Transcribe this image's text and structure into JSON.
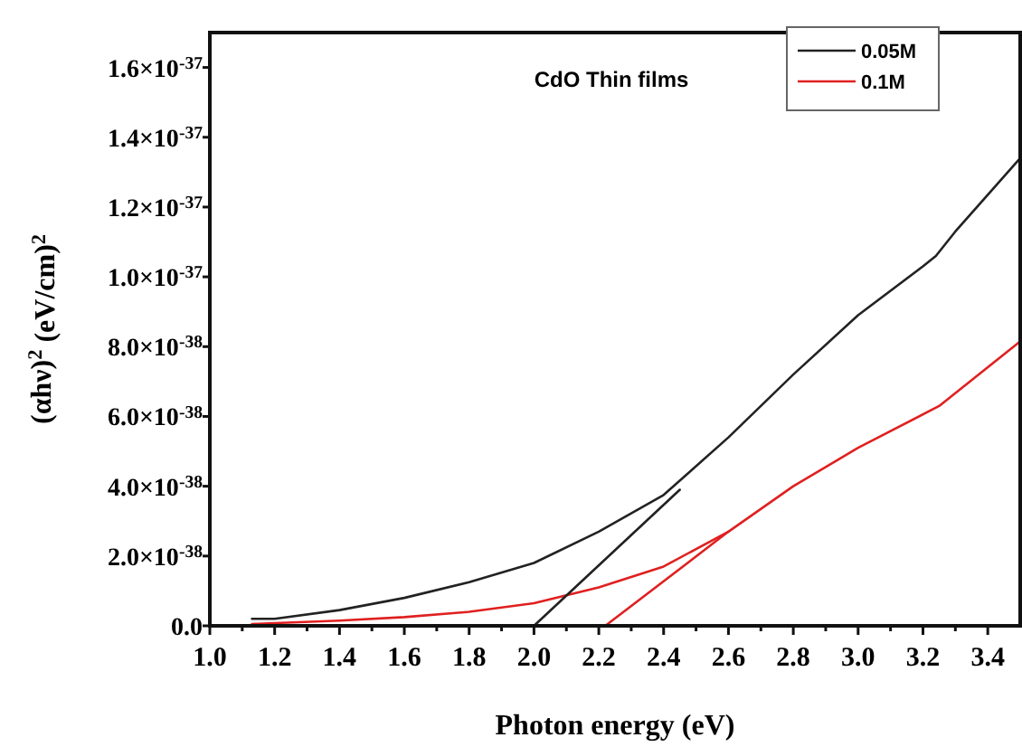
{
  "chart_data": {
    "type": "line",
    "title": "CdO Thin films",
    "xlabel": "Photon energy (eV)",
    "ylabel": "(αhν)$^{2}$ (eV/cm)$^{2}$",
    "xlim": [
      1.0,
      3.5
    ],
    "xticks": [
      {
        "value": 1,
        "label": "1.0"
      },
      {
        "value": 1.1,
        "label": null
      },
      1.2,
      {
        "value": 1.3,
        "label": null
      },
      1.4,
      {
        "value": 1.5,
        "label": null
      },
      1.6,
      {
        "value": 1.7,
        "label": null
      },
      1.8,
      {
        "value": 1.9,
        "label": null
      },
      {
        "value": 2,
        "label": "2.0"
      },
      {
        "value": 2.1,
        "label": null
      },
      2.2,
      {
        "value": 2.3,
        "label": null
      },
      2.4,
      {
        "value": 2.5,
        "label": null
      },
      2.6,
      {
        "value": 2.7,
        "label": null
      },
      2.8,
      {
        "value": 2.9,
        "label": null
      },
      {
        "value": 3,
        "label": "3.0"
      },
      {
        "value": 3.1,
        "label": null
      },
      3.2,
      {
        "value": 3.3,
        "label": null
      },
      3.4
    ],
    "ylim": [
      0,
      1.7e-37
    ],
    "yticks": [
      {
        "value": 0,
        "label": "0.0"
      },
      {
        "value": 2e-38,
        "label": "2.0×10$^{-38}$"
      },
      {
        "value": 4e-38,
        "label": "4.0×10$^{-38}$"
      },
      {
        "value": 6e-38,
        "label": "6.0×10$^{-38}$"
      },
      {
        "value": 8e-38,
        "label": "8.0×10$^{-38}$"
      },
      {
        "value": 1e-37,
        "label": "1.0×10$^{-37}$"
      },
      {
        "value": 1.2e-37,
        "label": "1.2×10$^{-37}$"
      },
      {
        "value": 1.4e-37,
        "label": "1.4×10$^{-37}$"
      },
      {
        "value": 1.6e-37,
        "label": "1.6×10$^{-37}$"
      }
    ],
    "grid": false,
    "legend": "top right",
    "marker": "none",
    "line_style": "solid",
    "series": [
      {
        "name": "0.05M",
        "color": "#222222",
        "x": [
          1.13,
          1.2,
          1.4,
          1.6,
          1.8,
          2.0,
          2.2,
          2.4,
          2.6,
          2.8,
          3.0,
          3.2,
          3.24,
          3.3,
          3.5
        ],
        "values": [
          2e-39,
          2e-39,
          4.5e-39,
          8e-39,
          1.25e-38,
          1.8e-38,
          2.7e-38,
          3.75e-38,
          5.4e-38,
          7.2e-38,
          8.9e-38,
          1.03e-37,
          1.06e-37,
          1.13e-37,
          1.34e-37
        ]
      },
      {
        "name": "0.1M",
        "color": "#e02020",
        "x": [
          1.13,
          1.4,
          1.6,
          1.8,
          2.0,
          2.2,
          2.4,
          2.6,
          2.8,
          3.0,
          3.25,
          3.5
        ],
        "values": [
          5e-40,
          1.5e-39,
          2.5e-39,
          4e-39,
          6.5e-39,
          1.1e-38,
          1.7e-38,
          2.7e-38,
          4e-38,
          5.1e-38,
          6.3e-38,
          8.15e-38
        ]
      },
      {
        "type": "line",
        "color": "#222222",
        "x": [
          2.0,
          2.45
        ],
        "values": [
          0,
          3.9e-38
        ]
      },
      {
        "type": "line",
        "color": "#e02020",
        "x": [
          2.22,
          2.6
        ],
        "values": [
          0,
          2.7e-38
        ]
      }
    ]
  }
}
